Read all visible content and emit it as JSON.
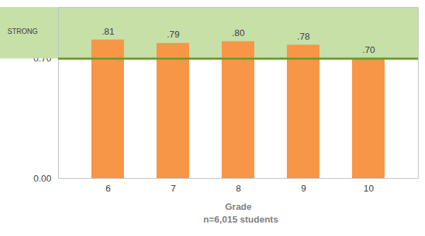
{
  "chart_data": {
    "type": "bar",
    "categories": [
      "6",
      "7",
      "8",
      "9",
      "10"
    ],
    "values": [
      0.81,
      0.79,
      0.8,
      0.78,
      0.7
    ],
    "value_labels": [
      ".81",
      ".79",
      ".80",
      ".78",
      ".70"
    ],
    "data_labels": true,
    "color": "#f79646",
    "xlabel": "Grade",
    "caption": "n=6,015 students",
    "ylim": [
      0,
      1
    ],
    "yticks": [
      {
        "value": 0,
        "label": "0.00"
      },
      {
        "value": 0.7,
        "label": "0.70"
      }
    ],
    "threshold": {
      "value": 0.7,
      "band_color": "#c6e0a8",
      "line_color": "#6a9a2a"
    },
    "annotations": [
      {
        "text": "STRONG",
        "y": 0.86
      }
    ]
  }
}
